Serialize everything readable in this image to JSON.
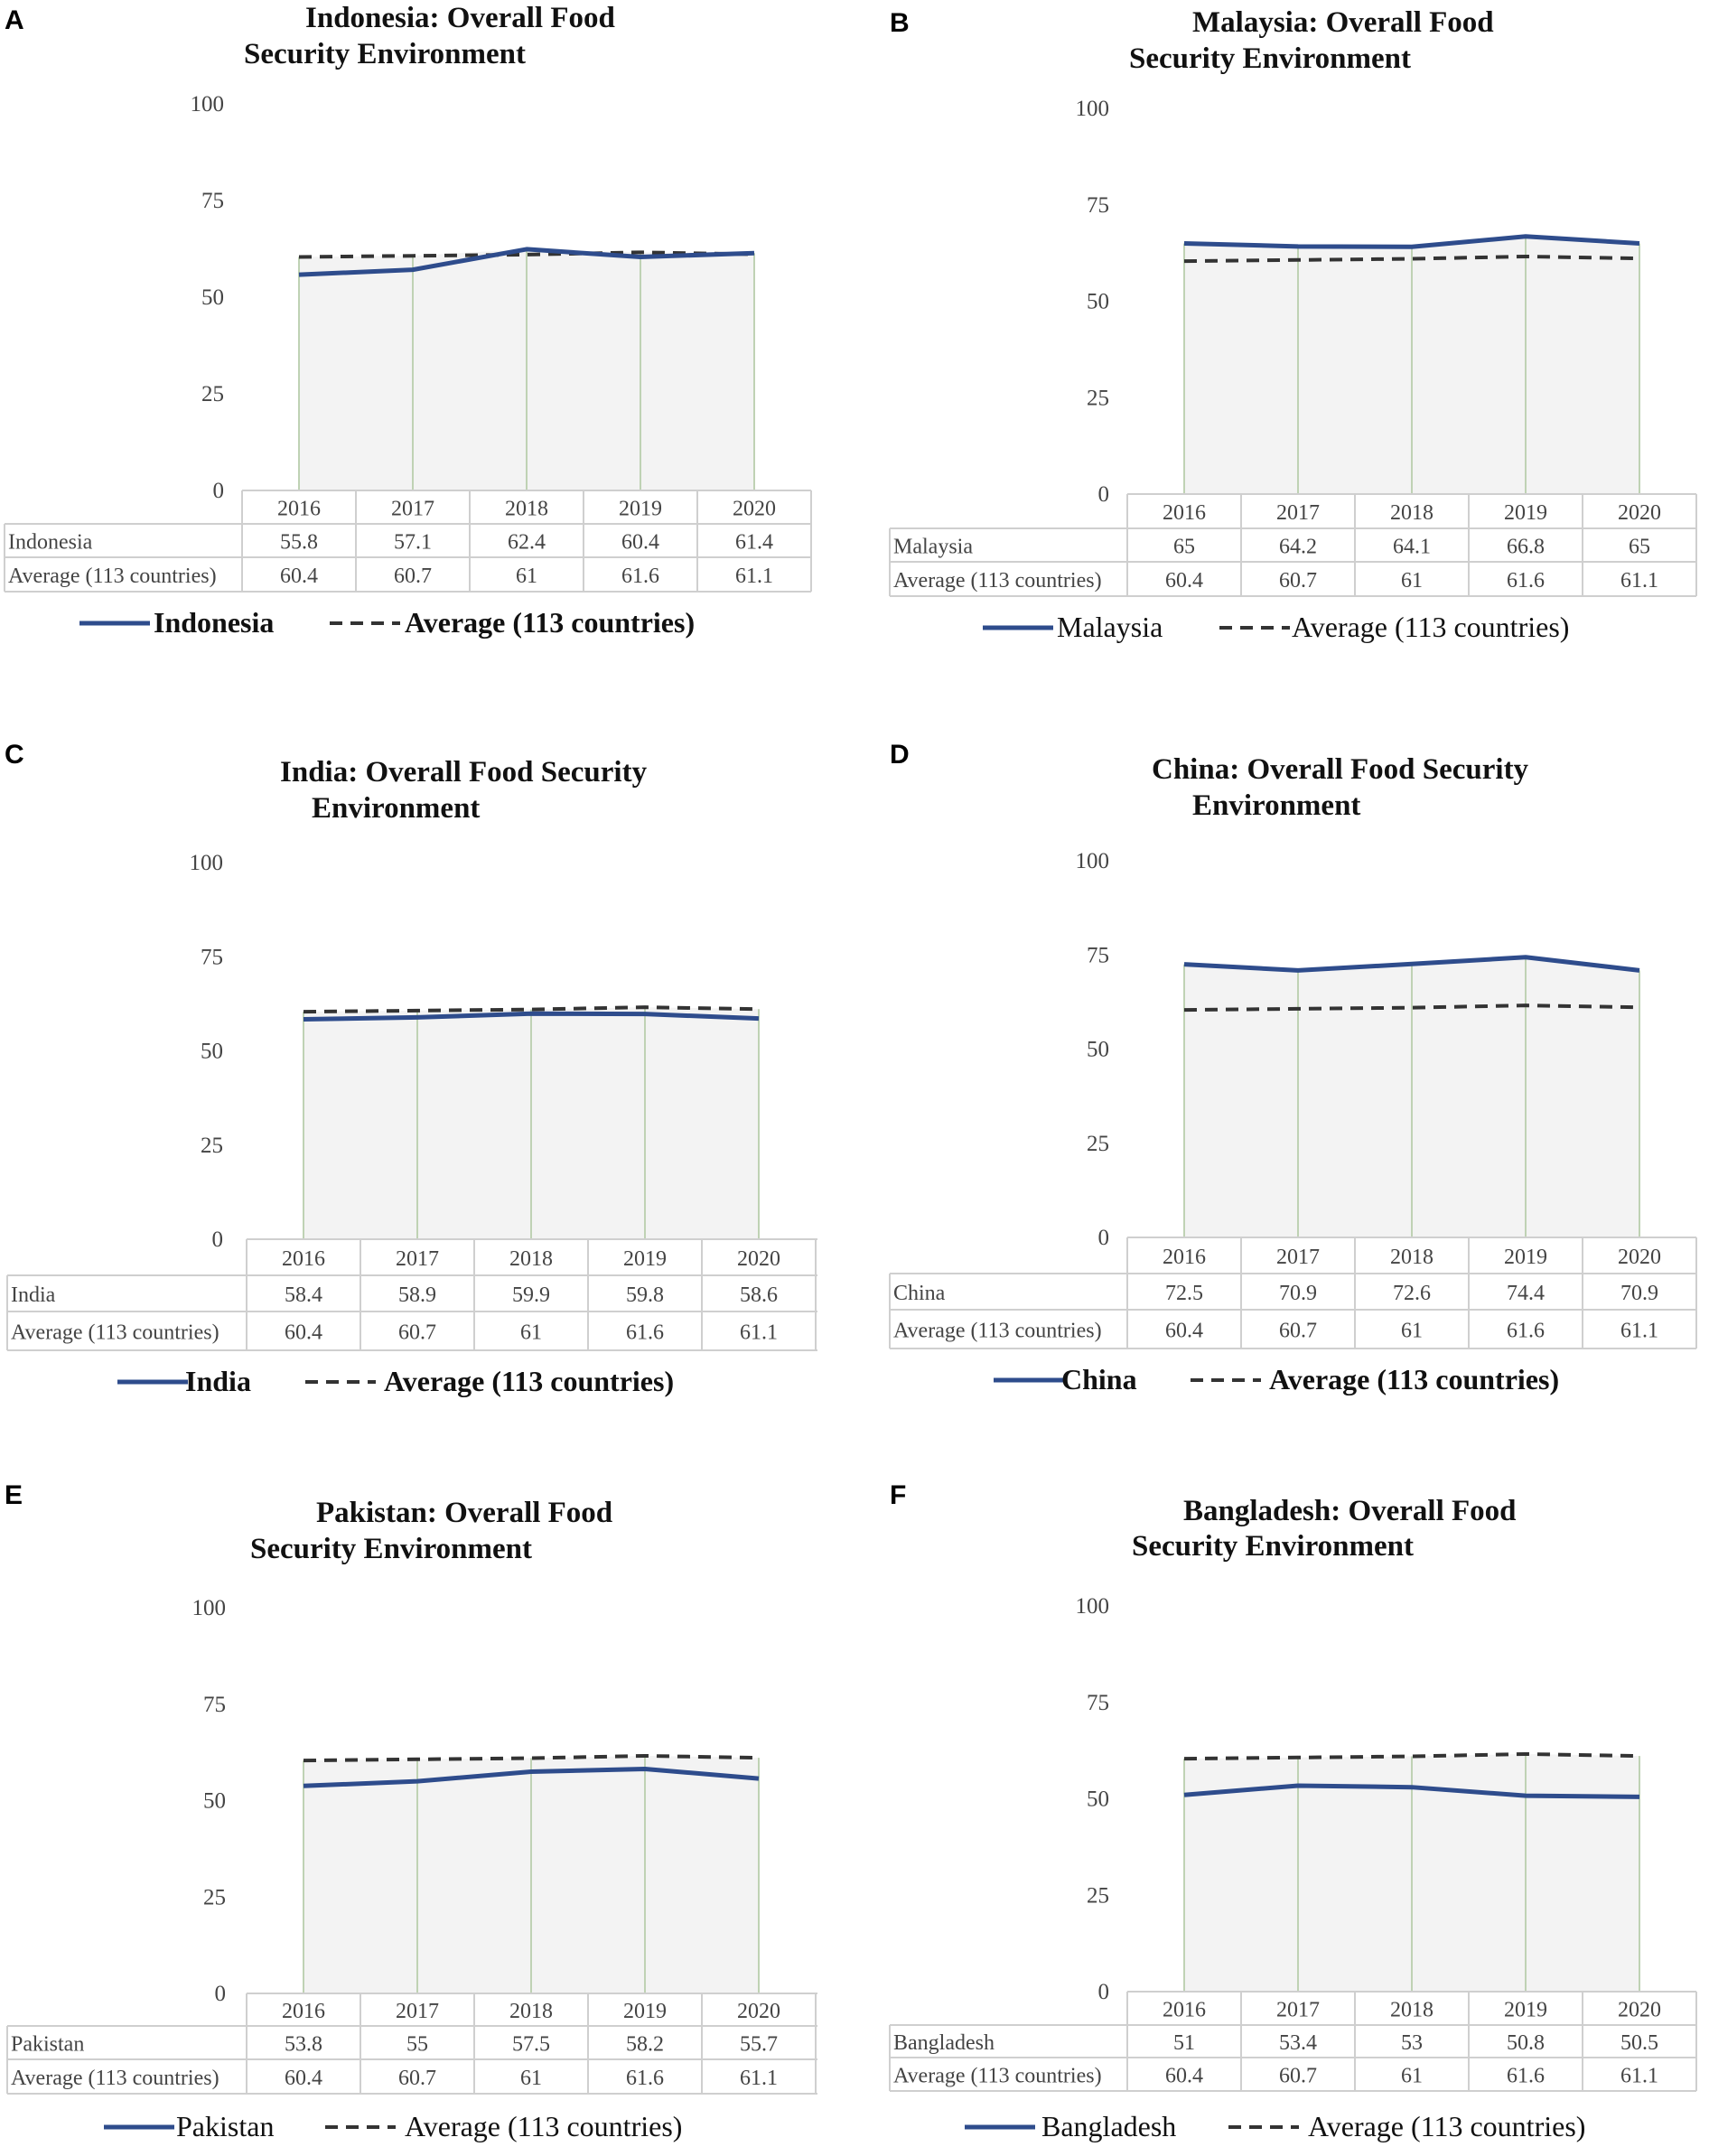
{
  "colors": {
    "country": "#2E4C8C",
    "average": "#333333",
    "grid": "#bfd2b4",
    "fill": "#f3f3f3",
    "table": "#cfcfcf"
  },
  "chart_data": [
    {
      "panel": "A",
      "type": "line",
      "title_lines": [
        "Indonesia: Overall Food",
        "Security Environment"
      ],
      "categories": [
        "2016",
        "2017",
        "2018",
        "2019",
        "2020"
      ],
      "yticks": [
        "0",
        "25",
        "50",
        "75",
        "100"
      ],
      "ylim": [
        0,
        100
      ],
      "series": [
        {
          "name": "Indonesia",
          "values": [
            55.8,
            57.1,
            62.4,
            60.4,
            61.4
          ],
          "labels": [
            "55.8",
            "57.1",
            "62.4",
            "60.4",
            "61.4"
          ]
        },
        {
          "name": "Average (113 countries)",
          "values": [
            60.4,
            60.7,
            61,
            61.6,
            61.1
          ],
          "labels": [
            "60.4",
            "60.7",
            "61",
            "61.6",
            "61.1"
          ]
        }
      ],
      "legend": [
        "Indonesia",
        "Average (113 countries)"
      ],
      "legend_bold": true
    },
    {
      "panel": "B",
      "type": "line",
      "title_lines": [
        "Malaysia: Overall Food",
        "Security Environment"
      ],
      "categories": [
        "2016",
        "2017",
        "2018",
        "2019",
        "2020"
      ],
      "yticks": [
        "0",
        "25",
        "50",
        "75",
        "100"
      ],
      "ylim": [
        0,
        100
      ],
      "series": [
        {
          "name": "Malaysia",
          "values": [
            65,
            64.2,
            64.1,
            66.8,
            65
          ],
          "labels": [
            "65",
            "64.2",
            "64.1",
            "66.8",
            "65"
          ]
        },
        {
          "name": "Average (113 countries)",
          "values": [
            60.4,
            60.7,
            61,
            61.6,
            61.1
          ],
          "labels": [
            "60.4",
            "60.7",
            "61",
            "61.6",
            "61.1"
          ]
        }
      ],
      "legend": [
        "Malaysia",
        "Average (113 countries)"
      ],
      "legend_bold": false
    },
    {
      "panel": "C",
      "type": "line",
      "title_lines": [
        "India: Overall Food Security",
        "Environment"
      ],
      "categories": [
        "2016",
        "2017",
        "2018",
        "2019",
        "2020"
      ],
      "yticks": [
        "0",
        "25",
        "50",
        "75",
        "100"
      ],
      "ylim": [
        0,
        100
      ],
      "series": [
        {
          "name": "India",
          "values": [
            58.4,
            58.9,
            59.9,
            59.8,
            58.6
          ],
          "labels": [
            "58.4",
            "58.9",
            "59.9",
            "59.8",
            "58.6"
          ]
        },
        {
          "name": "Average (113 countries)",
          "values": [
            60.4,
            60.7,
            61,
            61.6,
            61.1
          ],
          "labels": [
            "60.4",
            "60.7",
            "61",
            "61.6",
            "61.1"
          ]
        }
      ],
      "legend": [
        "India",
        "Average (113 countries)"
      ],
      "legend_bold": true
    },
    {
      "panel": "D",
      "type": "line",
      "title_lines": [
        "China:  Overall Food Security",
        "Environment"
      ],
      "categories": [
        "2016",
        "2017",
        "2018",
        "2019",
        "2020"
      ],
      "yticks": [
        "0",
        "25",
        "50",
        "75",
        "100"
      ],
      "ylim": [
        0,
        100
      ],
      "series": [
        {
          "name": "China",
          "values": [
            72.5,
            70.9,
            72.6,
            74.4,
            70.9
          ],
          "labels": [
            "72.5",
            "70.9",
            "72.6",
            "74.4",
            "70.9"
          ]
        },
        {
          "name": "Average (113 countries)",
          "values": [
            60.4,
            60.7,
            61,
            61.6,
            61.1
          ],
          "labels": [
            "60.4",
            "60.7",
            "61",
            "61.6",
            "61.1"
          ]
        }
      ],
      "legend": [
        "China",
        "Average (113 countries)"
      ],
      "legend_bold": true
    },
    {
      "panel": "E",
      "type": "line",
      "title_lines": [
        "Pakistan: Overall Food",
        "Security Environment"
      ],
      "categories": [
        "2016",
        "2017",
        "2018",
        "2019",
        "2020"
      ],
      "yticks": [
        "0",
        "25",
        "50",
        "75",
        "100"
      ],
      "ylim": [
        0,
        100
      ],
      "series": [
        {
          "name": "Pakistan",
          "values": [
            53.8,
            55,
            57.5,
            58.2,
            55.7
          ],
          "labels": [
            "53.8",
            "55",
            "57.5",
            "58.2",
            "55.7"
          ]
        },
        {
          "name": "Average (113 countries)",
          "values": [
            60.4,
            60.7,
            61,
            61.6,
            61.1
          ],
          "labels": [
            "60.4",
            "60.7",
            "61",
            "61.6",
            "61.1"
          ]
        }
      ],
      "legend": [
        "Pakistan",
        "Average (113 countries)"
      ],
      "legend_bold": false
    },
    {
      "panel": "F",
      "type": "line",
      "title_lines": [
        "Bangladesh: Overall Food",
        "Security Environment"
      ],
      "categories": [
        "2016",
        "2017",
        "2018",
        "2019",
        "2020"
      ],
      "yticks": [
        "0",
        "25",
        "50",
        "75",
        "100"
      ],
      "ylim": [
        0,
        100
      ],
      "series": [
        {
          "name": "Bangladesh",
          "values": [
            51,
            53.4,
            53,
            50.8,
            50.5
          ],
          "labels": [
            "51",
            "53.4",
            "53",
            "50.8",
            "50.5"
          ]
        },
        {
          "name": "Average (113 countries)",
          "values": [
            60.4,
            60.7,
            61,
            61.6,
            61.1
          ],
          "labels": [
            "60.4",
            "60.7",
            "61",
            "61.6",
            "61.1"
          ]
        }
      ],
      "legend": [
        "Bangladesh",
        "Average (113 countries)"
      ],
      "legend_bold": false
    }
  ]
}
